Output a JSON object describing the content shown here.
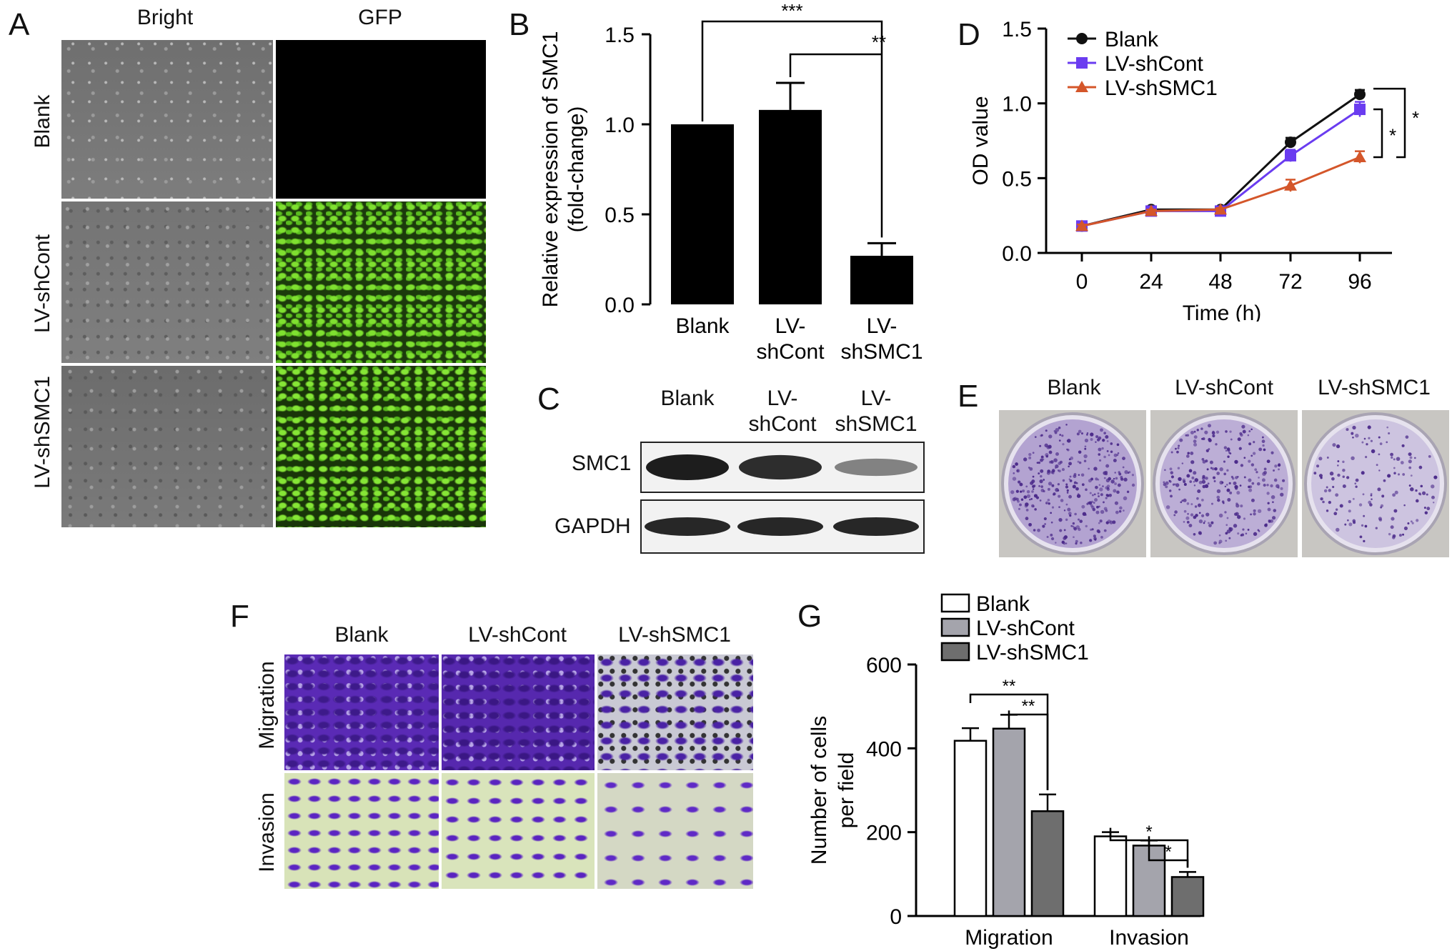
{
  "panels": {
    "a": {
      "letter": "A",
      "columns": [
        "Bright",
        "GFP"
      ],
      "rows": [
        "Blank",
        "LV-shCont",
        "LV-shSMC1"
      ]
    },
    "b": {
      "letter": "B"
    },
    "c": {
      "letter": "C",
      "lanes": [
        {
          "line1": "Blank",
          "line2": ""
        },
        {
          "line1": "LV-",
          "line2": "shCont"
        },
        {
          "line1": "LV-",
          "line2": "shSMC1"
        }
      ],
      "blots": [
        "SMC1",
        "GAPDH"
      ],
      "smc1_band_intensity": [
        1.0,
        0.9,
        0.35
      ],
      "gapdh_band_intensity": [
        1.0,
        1.0,
        1.0
      ]
    },
    "d": {
      "letter": "D"
    },
    "e": {
      "letter": "E",
      "columns": [
        "Blank",
        "LV-shCont",
        "LV-shSMC1"
      ],
      "colony_density": [
        1.0,
        0.75,
        0.3
      ]
    },
    "f": {
      "letter": "F",
      "columns": [
        "Blank",
        "LV-shCont",
        "LV-shSMC1"
      ],
      "rows": [
        "Migration",
        "Invasion"
      ]
    },
    "g": {
      "letter": "G"
    }
  },
  "chart_data": [
    {
      "id": "B",
      "type": "bar",
      "categories": [
        [
          "Blank"
        ],
        [
          "LV-",
          "shCont"
        ],
        [
          "LV-",
          "shSMC1"
        ]
      ],
      "values": [
        1.0,
        1.08,
        0.27
      ],
      "errors": [
        0.0,
        0.15,
        0.07
      ],
      "ylabel": [
        "Relative expression of SMC1",
        "(fold-change)"
      ],
      "ylim": [
        0,
        1.5
      ],
      "yticks": [
        "0.0",
        "0.5",
        "1.0",
        "1.5"
      ],
      "bar_color": "#000000",
      "significance": [
        {
          "from": 0,
          "to": 2,
          "label": "***"
        },
        {
          "from": 1,
          "to": 2,
          "label": "**"
        }
      ]
    },
    {
      "id": "D",
      "type": "line",
      "x": [
        0,
        24,
        48,
        72,
        96
      ],
      "xticks": [
        "0",
        "24",
        "48",
        "72",
        "96"
      ],
      "xlabel": "Time (h)",
      "ylabel": "OD value",
      "ylim": [
        0,
        1.5
      ],
      "yticks": [
        "0.0",
        "0.5",
        "1.0",
        "1.5"
      ],
      "legend_position": "top-left",
      "series": [
        {
          "name": "Blank",
          "values": [
            0.18,
            0.29,
            0.29,
            0.74,
            1.06
          ],
          "errors": [
            0.01,
            0.01,
            0.01,
            0.03,
            0.03
          ],
          "color": "#111111",
          "marker": "circle"
        },
        {
          "name": "LV-shCont",
          "values": [
            0.18,
            0.28,
            0.28,
            0.65,
            0.96
          ],
          "errors": [
            0.01,
            0.01,
            0.01,
            0.04,
            0.05
          ],
          "color": "#6a3cf0",
          "marker": "square"
        },
        {
          "name": "LV-shSMC1",
          "values": [
            0.18,
            0.28,
            0.29,
            0.45,
            0.64
          ],
          "errors": [
            0.01,
            0.01,
            0.01,
            0.04,
            0.04
          ],
          "color": "#d4562a",
          "marker": "triangle"
        }
      ],
      "significance": [
        {
          "label": "*"
        },
        {
          "label": "*"
        }
      ]
    },
    {
      "id": "G",
      "type": "bar",
      "categories": [
        "Migration",
        "Invasion"
      ],
      "ylabel": [
        "Number of cells",
        "per field"
      ],
      "ylim": [
        0,
        600
      ],
      "yticks": [
        "0",
        "200",
        "400",
        "600"
      ],
      "legend_position": "top",
      "series": [
        {
          "name": "Blank",
          "values": [
            418,
            190
          ],
          "errors": [
            30,
            10
          ],
          "color": "#ffffff"
        },
        {
          "name": "LV-shCont",
          "values": [
            447,
            168
          ],
          "errors": [
            33,
            12
          ],
          "color": "#a4a4ac"
        },
        {
          "name": "LV-shSMC1",
          "values": [
            250,
            93
          ],
          "errors": [
            40,
            12
          ],
          "color": "#6e6e6e"
        }
      ],
      "significance": [
        {
          "group": 0,
          "from": 0,
          "to": 2,
          "label": "**"
        },
        {
          "group": 0,
          "from": 1,
          "to": 2,
          "label": "**"
        },
        {
          "group": 1,
          "from": 0,
          "to": 2,
          "label": "*"
        },
        {
          "group": 1,
          "from": 1,
          "to": 2,
          "label": "*"
        }
      ]
    }
  ]
}
